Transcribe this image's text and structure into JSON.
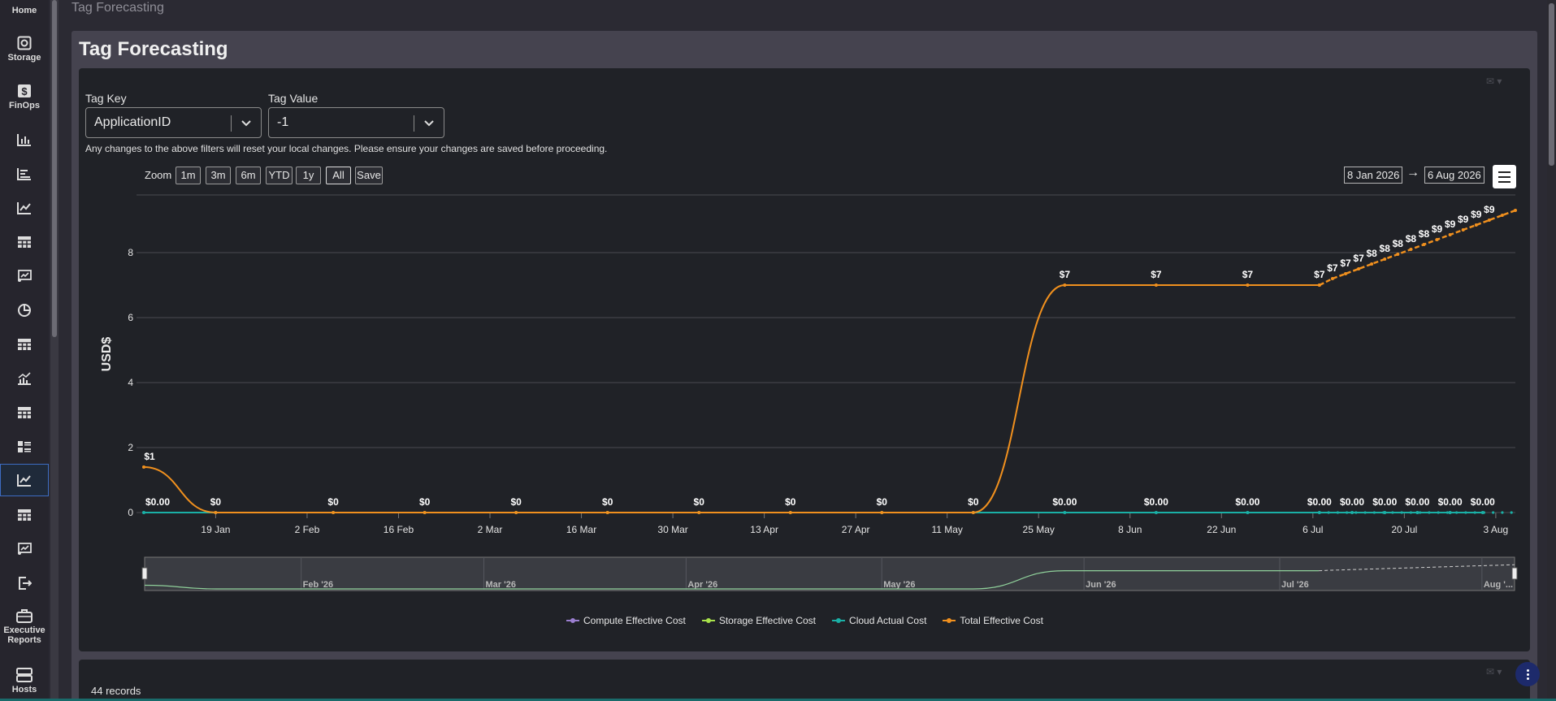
{
  "nav": {
    "home": "Home",
    "storage": "Storage",
    "finops": "FinOps",
    "exec_reports": "Executive Reports",
    "hosts": "Hosts"
  },
  "breadcrumb": "Tag Forecasting",
  "page_title": "Tag Forecasting",
  "filters": {
    "tag_key_label": "Tag Key",
    "tag_key_value": "ApplicationID",
    "tag_value_label": "Tag Value",
    "tag_value_value": "-1",
    "note": "Any changes to the above filters will reset your local changes. Please ensure your changes are saved before proceeding."
  },
  "zoom": {
    "label": "Zoom",
    "buttons": [
      "1m",
      "3m",
      "6m",
      "YTD",
      "1y",
      "All",
      "Save"
    ],
    "selected": "All",
    "range_from": "8 Jan 2026",
    "range_arrow": "→",
    "range_to": "6 Aug 2026"
  },
  "chart_data": {
    "type": "line",
    "ylabel": "USD$",
    "ylim": [
      0,
      9.5
    ],
    "y_ticks": [
      "0",
      "2",
      "4",
      "6",
      "8"
    ],
    "x_ticks": [
      "19 Jan",
      "2 Feb",
      "16 Feb",
      "2 Mar",
      "16 Mar",
      "30 Mar",
      "13 Apr",
      "27 Apr",
      "11 May",
      "25 May",
      "8 Jun",
      "22 Jun",
      "6 Jul",
      "20 Jul",
      "3 Aug"
    ],
    "navigator_labels": [
      "Feb '26",
      "Mar '26",
      "Apr '26",
      "May '26",
      "Jun '26",
      "Jul '26",
      "Aug '..."
    ],
    "series": [
      {
        "name": "Compute Effective Cost",
        "color": "#9b7fd0"
      },
      {
        "name": "Storage Effective Cost",
        "color": "#a9e34b"
      },
      {
        "name": "Cloud Actual Cost",
        "color": "#1ab0a6",
        "points": [
          [
            "2026-01-08",
            0
          ],
          [
            "2026-01-19",
            0
          ],
          [
            "2026-02-06",
            0
          ],
          [
            "2026-02-20",
            0
          ],
          [
            "2026-03-06",
            0
          ],
          [
            "2026-03-20",
            0
          ],
          [
            "2026-04-03",
            0
          ],
          [
            "2026-04-17",
            0
          ],
          [
            "2026-05-01",
            0
          ],
          [
            "2026-05-15",
            0
          ],
          [
            "2026-05-29",
            0
          ],
          [
            "2026-06-12",
            0
          ],
          [
            "2026-06-26",
            0
          ],
          [
            "2026-07-07",
            0
          ],
          [
            "2026-07-12",
            0
          ],
          [
            "2026-07-17",
            0
          ],
          [
            "2026-07-22",
            0
          ],
          [
            "2026-07-27",
            0
          ],
          [
            "2026-08-01",
            0
          ]
        ],
        "labels": [
          "$0.00",
          "$0.00",
          "$0.00",
          "$0.00",
          "$0.00",
          "$0.00",
          "$0.00",
          "$0.00",
          "$0.00",
          "$0.00"
        ]
      },
      {
        "name": "Total Effective Cost",
        "color": "#f0901e",
        "points": [
          [
            "2026-01-08",
            1.4
          ],
          [
            "2026-01-19",
            0
          ],
          [
            "2026-02-06",
            0
          ],
          [
            "2026-02-20",
            0
          ],
          [
            "2026-03-06",
            0
          ],
          [
            "2026-03-20",
            0
          ],
          [
            "2026-04-03",
            0
          ],
          [
            "2026-04-17",
            0
          ],
          [
            "2026-05-01",
            0
          ],
          [
            "2026-05-15",
            0
          ],
          [
            "2026-05-29",
            7
          ],
          [
            "2026-06-12",
            7
          ],
          [
            "2026-06-26",
            7
          ],
          [
            "2026-07-07",
            7
          ]
        ],
        "forecast": [
          [
            "2026-07-07",
            7
          ],
          [
            "2026-07-09",
            7.2
          ],
          [
            "2026-07-11",
            7.35
          ],
          [
            "2026-07-13",
            7.5
          ],
          [
            "2026-07-15",
            7.65
          ],
          [
            "2026-07-17",
            7.8
          ],
          [
            "2026-07-19",
            7.95
          ],
          [
            "2026-07-21",
            8.1
          ],
          [
            "2026-07-23",
            8.25
          ],
          [
            "2026-07-25",
            8.4
          ],
          [
            "2026-07-27",
            8.55
          ],
          [
            "2026-07-29",
            8.7
          ],
          [
            "2026-07-31",
            8.85
          ],
          [
            "2026-08-02",
            9.0
          ],
          [
            "2026-08-04",
            9.15
          ],
          [
            "2026-08-06",
            9.3
          ]
        ],
        "labels": [
          "$1",
          "$0",
          "$0",
          "$0",
          "$0",
          "$0",
          "$0",
          "$0",
          "$0",
          "$0",
          "$7",
          "$7",
          "$7",
          "$7",
          "$7",
          "$7",
          "$7",
          "$8",
          "$8",
          "$8",
          "$8",
          "$8",
          "$9",
          "$9",
          "$9",
          "$9",
          "$9"
        ]
      }
    ]
  },
  "records": "44 records"
}
